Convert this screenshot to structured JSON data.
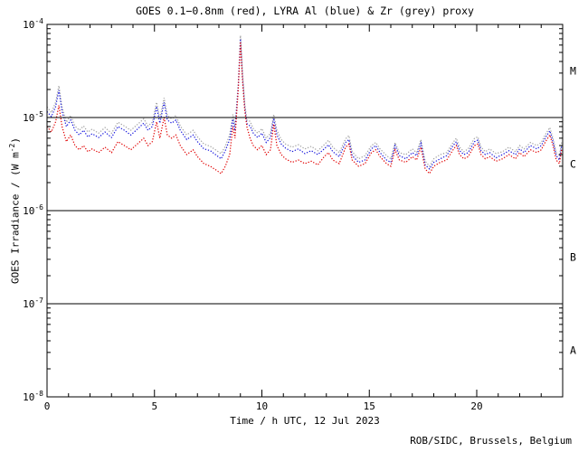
{
  "credit": "ROB/SIDC, Brussels, Belgium",
  "colors": {
    "red": "#e10000",
    "blue": "#1414dc",
    "grey": "#a0a0a0",
    "axis": "#000000",
    "background": "#ffffff"
  },
  "chart_data": {
    "type": "line",
    "title": "GOES 0.1−0.8nm (red), LYRA Al (blue) & Zr (grey) proxy",
    "xlabel": "Time / h UTC, 12 Jul 2023",
    "ylabel_main": "GOES Irradiance / (W m",
    "ylabel_exp": "-2",
    "ylabel_close": ")",
    "xlim": [
      0,
      24
    ],
    "ylim": [
      1e-08,
      0.0001
    ],
    "x_minor_step": 1,
    "x_major_ticks": [
      {
        "value": 0,
        "label": "0"
      },
      {
        "value": 5,
        "label": "5"
      },
      {
        "value": 10,
        "label": "10"
      },
      {
        "value": 15,
        "label": "15"
      },
      {
        "value": 20,
        "label": "20"
      }
    ],
    "y_decade_ticks": [
      {
        "exp": -4,
        "label_base": "10",
        "label_exp": "-4"
      },
      {
        "exp": -5,
        "label_base": "10",
        "label_exp": "-5"
      },
      {
        "exp": -6,
        "label_base": "10",
        "label_exp": "-6"
      },
      {
        "exp": -7,
        "label_base": "10",
        "label_exp": "-7"
      },
      {
        "exp": -8,
        "label_base": "10",
        "label_exp": "-8"
      }
    ],
    "flare_class_lines": [
      1e-05,
      1e-06,
      1e-07
    ],
    "flare_class_labels": [
      {
        "label": "M",
        "between_exp": [
          -5,
          -4
        ]
      },
      {
        "label": "C",
        "between_exp": [
          -6,
          -5
        ]
      },
      {
        "label": "B",
        "between_exp": [
          -7,
          -6
        ]
      },
      {
        "label": "A",
        "between_exp": [
          -8,
          -7
        ]
      }
    ],
    "grid": false,
    "unit_scale": 1e-06,
    "x": [
      0,
      0.2,
      0.4,
      0.55,
      0.7,
      0.9,
      1.1,
      1.3,
      1.5,
      1.7,
      1.9,
      2.1,
      2.4,
      2.7,
      3.0,
      3.3,
      3.6,
      3.9,
      4.2,
      4.5,
      4.7,
      4.9,
      5.1,
      5.25,
      5.45,
      5.6,
      5.8,
      6.0,
      6.2,
      6.5,
      6.8,
      7.0,
      7.3,
      7.6,
      7.9,
      8.1,
      8.3,
      8.5,
      8.65,
      8.75,
      8.9,
      9.0,
      9.1,
      9.2,
      9.3,
      9.45,
      9.6,
      9.8,
      10.0,
      10.2,
      10.4,
      10.55,
      10.7,
      10.9,
      11.1,
      11.4,
      11.7,
      12.0,
      12.3,
      12.6,
      12.9,
      13.1,
      13.3,
      13.6,
      13.9,
      14.05,
      14.2,
      14.5,
      14.8,
      15.1,
      15.3,
      15.5,
      15.8,
      16.0,
      16.2,
      16.4,
      16.7,
      17.0,
      17.2,
      17.4,
      17.6,
      17.8,
      18.0,
      18.3,
      18.6,
      18.9,
      19.05,
      19.2,
      19.4,
      19.6,
      19.9,
      20.05,
      20.2,
      20.4,
      20.6,
      20.9,
      21.2,
      21.5,
      21.8,
      22.0,
      22.2,
      22.5,
      22.8,
      23.0,
      23.2,
      23.4,
      23.55,
      23.7,
      23.85,
      23.95
    ],
    "series": [
      {
        "name": "GOES 0.1-0.8nm",
        "color_key": "red",
        "values_1e6": [
          8.0,
          7.0,
          9.0,
          13.5,
          8.0,
          5.5,
          6.5,
          5.0,
          4.5,
          5.0,
          4.3,
          4.6,
          4.2,
          4.8,
          4.2,
          5.5,
          5.0,
          4.5,
          5.2,
          6.0,
          5.0,
          5.5,
          9.0,
          6.0,
          10.0,
          6.5,
          6.0,
          6.5,
          5.0,
          4.0,
          4.5,
          3.8,
          3.2,
          3.0,
          2.7,
          2.5,
          3.0,
          4.0,
          8.0,
          6.0,
          20.0,
          65.0,
          25.0,
          12.0,
          8.0,
          6.0,
          5.0,
          4.5,
          5.0,
          4.0,
          4.5,
          8.5,
          5.0,
          4.0,
          3.6,
          3.3,
          3.5,
          3.2,
          3.4,
          3.1,
          3.8,
          4.2,
          3.5,
          3.2,
          4.8,
          5.2,
          3.5,
          3.0,
          3.2,
          4.2,
          4.5,
          3.8,
          3.2,
          3.0,
          4.5,
          3.5,
          3.3,
          3.8,
          3.5,
          4.8,
          2.8,
          2.5,
          3.0,
          3.3,
          3.5,
          4.5,
          5.0,
          4.0,
          3.6,
          3.8,
          5.0,
          5.2,
          4.0,
          3.6,
          3.8,
          3.4,
          3.6,
          4.0,
          3.6,
          4.2,
          3.8,
          4.5,
          4.2,
          4.5,
          5.5,
          6.5,
          5.0,
          3.5,
          3.2,
          4.5
        ]
      },
      {
        "name": "LYRA Al proxy",
        "color_key": "blue",
        "values_1e6": [
          11.6,
          10.2,
          13.1,
          19.6,
          11.6,
          8.0,
          9.4,
          7.3,
          6.5,
          7.3,
          6.2,
          6.7,
          6.1,
          7.0,
          6.1,
          8.0,
          7.3,
          6.5,
          7.5,
          8.7,
          7.3,
          8.0,
          13.1,
          8.7,
          14.5,
          9.4,
          8.7,
          9.4,
          7.3,
          5.8,
          6.5,
          5.5,
          4.6,
          4.4,
          3.9,
          3.6,
          4.4,
          5.8,
          9.6,
          7.2,
          21.6,
          70.0,
          27.0,
          13.0,
          8.6,
          8.1,
          6.8,
          6.1,
          6.8,
          5.4,
          6.1,
          9.8,
          6.5,
          5.2,
          4.7,
          4.3,
          4.6,
          4.1,
          4.4,
          4.0,
          4.6,
          5.1,
          4.3,
          3.8,
          5.4,
          5.8,
          3.9,
          3.3,
          3.5,
          4.6,
          5.0,
          4.2,
          3.5,
          3.3,
          5.0,
          3.9,
          3.6,
          4.2,
          3.9,
          5.3,
          3.1,
          2.8,
          3.3,
          3.6,
          3.9,
          5.0,
          5.5,
          4.4,
          4.0,
          4.2,
          5.5,
          5.7,
          4.4,
          4.0,
          4.2,
          3.7,
          4.0,
          4.4,
          4.0,
          4.6,
          4.2,
          5.0,
          4.6,
          5.0,
          6.1,
          7.2,
          5.5,
          3.9,
          3.5,
          5.0
        ]
      },
      {
        "name": "LYRA Zr proxy",
        "color_key": "grey",
        "values_1e6": [
          13.0,
          11.3,
          14.6,
          21.9,
          13.0,
          8.9,
          10.5,
          8.1,
          7.3,
          8.1,
          7.0,
          7.5,
          6.8,
          7.8,
          6.8,
          8.9,
          8.1,
          7.3,
          8.4,
          9.7,
          8.1,
          8.9,
          14.6,
          9.7,
          16.2,
          10.5,
          9.7,
          10.5,
          8.1,
          6.5,
          7.3,
          6.2,
          5.2,
          4.9,
          4.4,
          4.1,
          4.9,
          6.5,
          10.8,
          8.1,
          23.5,
          76.0,
          29.5,
          14.2,
          9.4,
          9.1,
          7.6,
          6.8,
          7.6,
          6.0,
          6.8,
          10.8,
          7.3,
          5.8,
          5.2,
          4.8,
          5.1,
          4.6,
          4.9,
          4.4,
          5.1,
          5.7,
          4.8,
          4.2,
          5.9,
          6.4,
          4.3,
          3.6,
          3.9,
          5.0,
          5.4,
          4.6,
          3.9,
          3.6,
          5.4,
          4.2,
          4.0,
          4.6,
          4.2,
          5.8,
          3.4,
          3.0,
          3.6,
          4.0,
          4.2,
          5.4,
          6.0,
          4.8,
          4.3,
          4.6,
          6.0,
          6.2,
          4.8,
          4.3,
          4.6,
          4.1,
          4.3,
          4.8,
          4.3,
          5.0,
          4.6,
          5.4,
          5.0,
          5.4,
          6.6,
          7.8,
          6.0,
          4.2,
          3.9,
          5.4
        ]
      }
    ]
  }
}
